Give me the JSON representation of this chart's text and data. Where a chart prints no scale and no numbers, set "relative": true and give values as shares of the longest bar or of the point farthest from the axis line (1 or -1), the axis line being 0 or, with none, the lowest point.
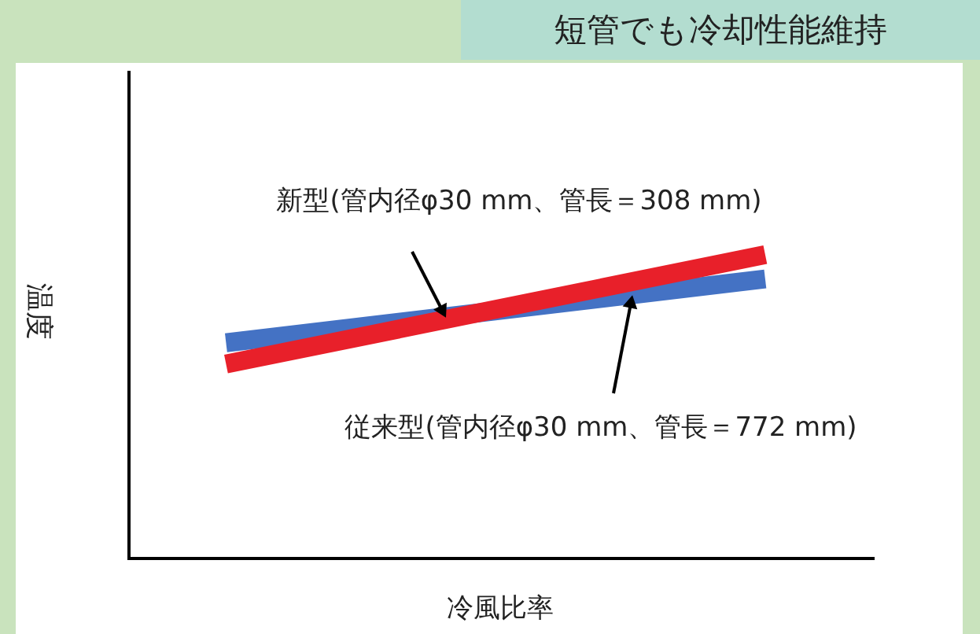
{
  "chart_data": {
    "type": "line",
    "title": "短管でも冷却性能維持",
    "xlabel": "冷風比率",
    "ylabel": "温度",
    "relative": true,
    "line_style": "solid",
    "marker": "none",
    "categories": [
      null,
      null
    ],
    "series": [
      {
        "name": "新型(管内径φ30 mm、管長＝308 mm)",
        "color": "#e8202a",
        "values": [
          0.64,
          1
        ]
      },
      {
        "name": "従来型(管内径φ30 mm、管長＝772 mm)",
        "color": "#4472c4",
        "values": [
          0.71,
          0.92
        ]
      }
    ]
  }
}
